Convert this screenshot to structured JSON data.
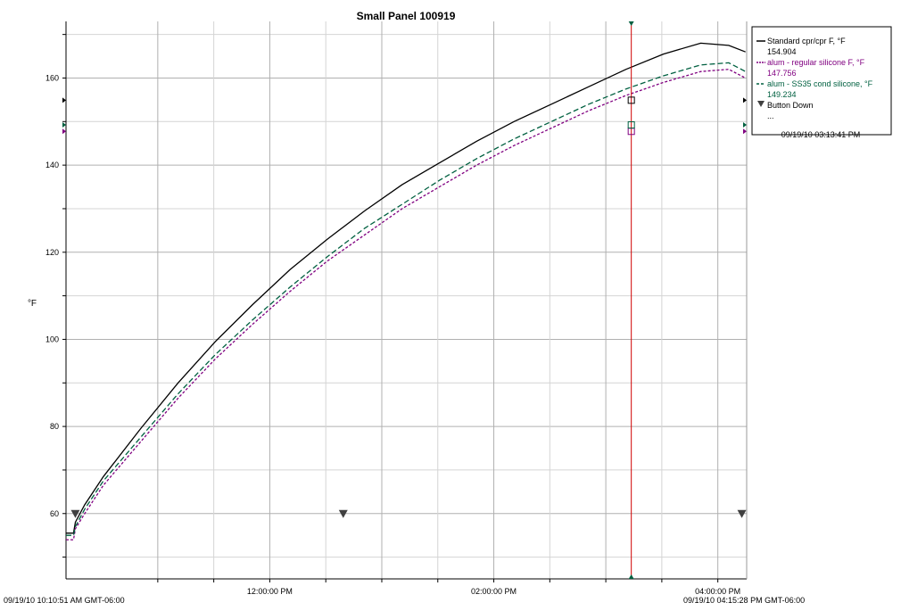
{
  "chart_data": {
    "type": "line",
    "title": "Small Panel 100919",
    "ylabel": "°F",
    "xlabel": "",
    "ylim": [
      45,
      173
    ],
    "xlim": [
      0,
      364.6
    ],
    "y_ticks": [
      60,
      80,
      100,
      120,
      140,
      160
    ],
    "x_ticks": [
      {
        "x": 109.15,
        "label": "12:00:00 PM"
      },
      {
        "x": 229.15,
        "label": "02:00:00 PM"
      },
      {
        "x": 349.15,
        "label": "04:00:00 PM"
      }
    ],
    "x_start_label": "09/19/10 10:10:51 AM GMT-06:00",
    "x_end_label": "09/19/10 04:15:28 PM GMT-06:00",
    "grid": true,
    "legend_position": "top-right",
    "cursor": {
      "x": 302.8,
      "label": "09/19/10 03:13:41 PM"
    },
    "series": [
      {
        "name": "Standard cpr/cpr F, °F",
        "value_label": "154.904",
        "color": "#000000",
        "dash": "",
        "x": [
          0,
          4,
          5,
          10,
          20,
          40,
          60,
          80,
          100,
          120,
          140,
          160,
          180,
          200,
          220,
          240,
          260,
          280,
          300,
          320,
          340,
          355,
          364
        ],
        "values": [
          55.5,
          55.5,
          58,
          62,
          68.5,
          79.5,
          90,
          99.5,
          108,
          116,
          123,
          129.5,
          135.5,
          140.5,
          145.5,
          150,
          154,
          158,
          162,
          165.5,
          168,
          167.5,
          166
        ]
      },
      {
        "name": "alum - regular silicone F, °F",
        "value_label": "147.756",
        "color": "#800080",
        "dash": "3,2",
        "x": [
          0,
          4,
          5,
          10,
          20,
          40,
          60,
          80,
          100,
          120,
          140,
          160,
          180,
          200,
          220,
          240,
          260,
          280,
          300,
          320,
          340,
          355,
          364
        ],
        "values": [
          54,
          54,
          56.5,
          60,
          66.5,
          76.5,
          86.5,
          95.5,
          103.5,
          111,
          118,
          124,
          130,
          135,
          140,
          144.5,
          148.5,
          152.5,
          156,
          159,
          161.5,
          162,
          160
        ]
      },
      {
        "name": "alum - SS35 cond silicone, °F",
        "value_label": "149.234",
        "color": "#006040",
        "dash": "6,3",
        "x": [
          0,
          4,
          5,
          10,
          20,
          40,
          60,
          80,
          100,
          120,
          140,
          160,
          180,
          200,
          220,
          240,
          260,
          280,
          300,
          320,
          340,
          355,
          364
        ],
        "values": [
          55,
          55,
          57,
          61,
          67.5,
          77.5,
          87.5,
          96.5,
          104.5,
          112,
          119,
          125.5,
          131,
          136.5,
          141.5,
          146,
          150,
          154,
          157.5,
          160.5,
          163,
          163.5,
          161.5
        ]
      }
    ],
    "events": [
      {
        "name": "Button Down",
        "label": "...",
        "x": [
          5,
          148.5,
          362
        ]
      }
    ]
  }
}
